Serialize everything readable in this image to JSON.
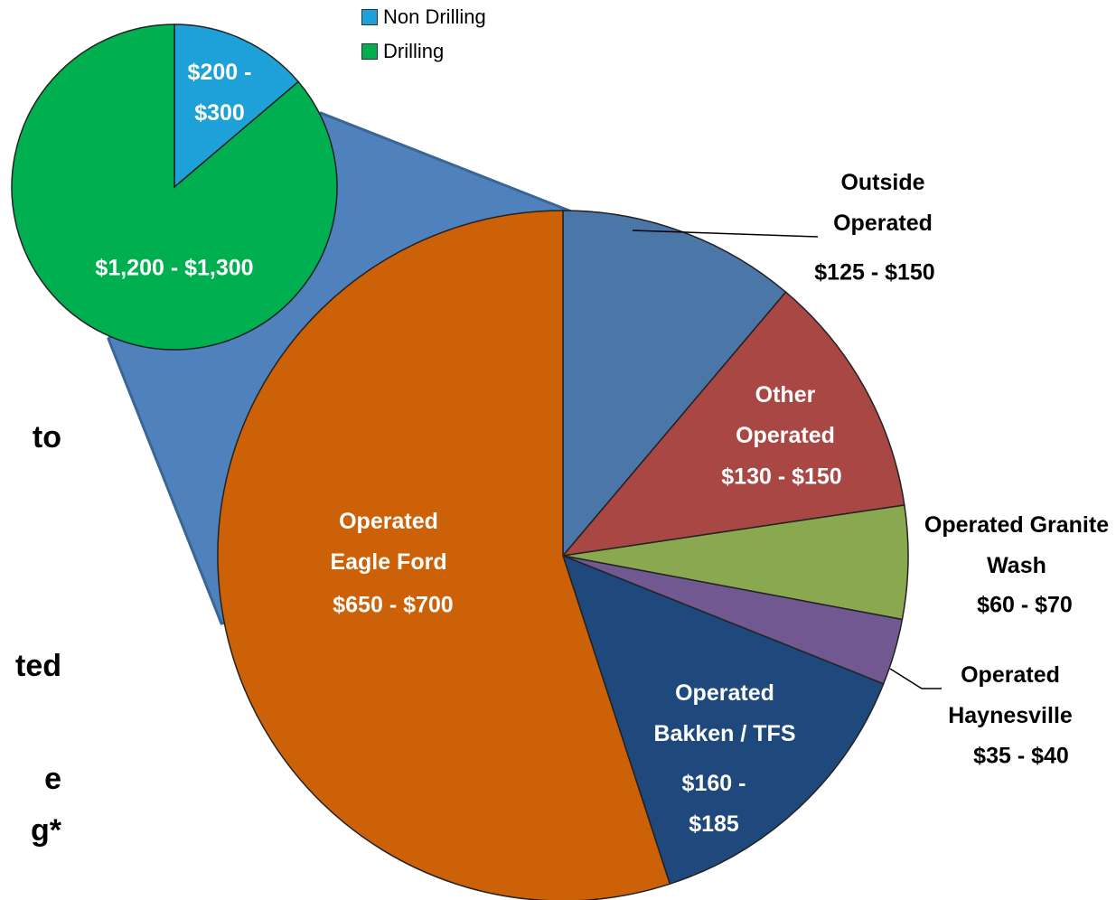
{
  "chart_data": [
    {
      "type": "pie",
      "categories": [
        "Non Drilling",
        "Drilling"
      ],
      "values": [
        200,
        1250
      ],
      "value_labels": [
        "$200 - $300",
        "$1,200 - $1,300"
      ],
      "colors": [
        "#1ea0d8",
        "#00b050"
      ],
      "legend": "top"
    },
    {
      "type": "pie",
      "categories": [
        "Outside Operated",
        "Other Operated",
        "Operated Granite Wash",
        "Operated Haynesville",
        "Operated Bakken / TFS",
        "Operated Eagle Ford"
      ],
      "values": [
        137,
        141,
        65,
        38,
        171,
        675
      ],
      "value_labels": [
        "$125 - $150",
        "$130 - $150",
        "$60 - $70",
        "$35 - $40",
        "$160 - $185",
        "$650 - $700"
      ],
      "colors": [
        "#4a76a8",
        "#a94744",
        "#8aa84f",
        "#715890",
        "#1f497d",
        "#cc6108"
      ]
    }
  ],
  "side_text": [
    "to",
    "ted",
    "e",
    "g*"
  ]
}
